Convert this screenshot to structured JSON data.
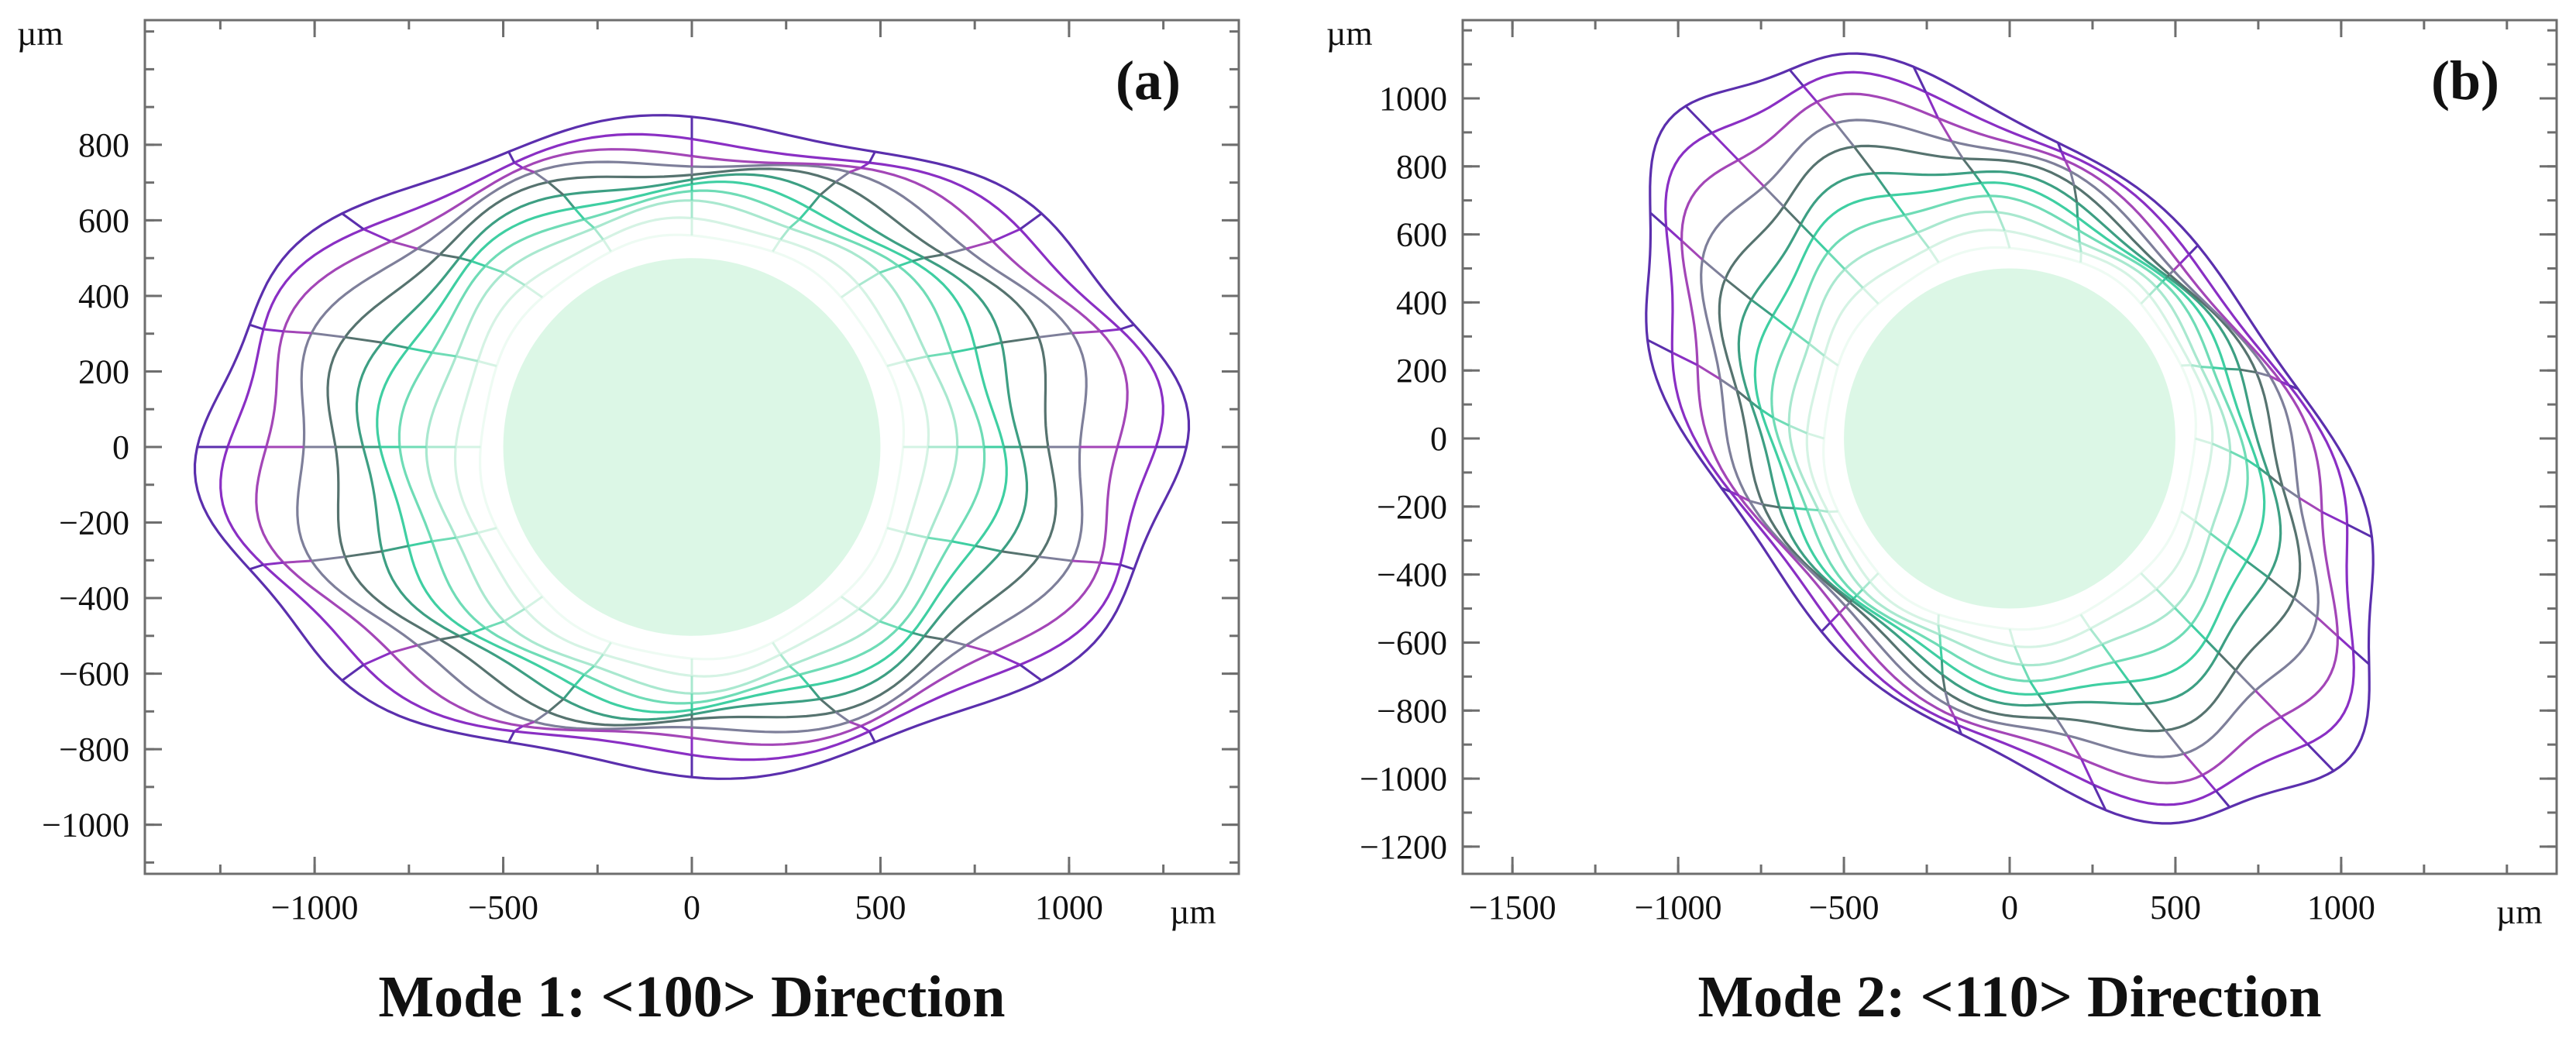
{
  "chart_data": [
    {
      "type": "contour",
      "panel_label": "(a)",
      "caption": "Mode 1: <100> Direction",
      "x_unit": "µm",
      "y_unit": "µm",
      "xlim": [
        -1450,
        1450
      ],
      "ylim": [
        -1130,
        1130
      ],
      "xticks": [
        -1000,
        -500,
        0,
        500,
        1000
      ],
      "xtick_labels": [
        "−1000",
        "−500",
        "0",
        "500",
        "1000"
      ],
      "yticks": [
        -1000,
        -800,
        -600,
        -400,
        -200,
        0,
        200,
        400,
        600,
        800
      ],
      "ytick_labels": [
        "−1000",
        "−800",
        "−600",
        "−400",
        "−200",
        "0",
        "200",
        "400",
        "600",
        "800"
      ],
      "seed_radius": 500,
      "seed_color": "#dcf7e6",
      "growth_fronts": [
        {
          "rx": 560,
          "ry": 560,
          "wave_amp": 0.01,
          "wave_k": 8,
          "color": "#eefbf3"
        },
        {
          "rx": 620,
          "ry": 600,
          "wave_amp": 0.015,
          "wave_k": 8,
          "color": "#d5f3e4"
        },
        {
          "rx": 690,
          "ry": 640,
          "wave_amp": 0.02,
          "wave_k": 8,
          "color": "#a9e8cf"
        },
        {
          "rx": 760,
          "ry": 665,
          "wave_amp": 0.022,
          "wave_k": 8,
          "color": "#6fdcb6"
        },
        {
          "rx": 820,
          "ry": 690,
          "wave_amp": 0.025,
          "wave_k": 8,
          "color": "#3fcfa2"
        },
        {
          "rx": 880,
          "ry": 715,
          "wave_amp": 0.028,
          "wave_k": 8,
          "color": "#3d9f83"
        },
        {
          "rx": 970,
          "ry": 740,
          "wave_amp": 0.03,
          "wave_k": 8,
          "color": "#56736f"
        },
        {
          "rx": 1060,
          "ry": 765,
          "wave_amp": 0.03,
          "wave_k": 8,
          "color": "#7e7f9a"
        },
        {
          "rx": 1150,
          "ry": 785,
          "wave_amp": 0.03,
          "wave_k": 8,
          "color": "#a346b7"
        },
        {
          "rx": 1230,
          "ry": 815,
          "wave_amp": 0.028,
          "wave_k": 8,
          "color": "#8a2fc4"
        },
        {
          "rx": 1290,
          "ry": 860,
          "wave_amp": 0.025,
          "wave_k": 8,
          "color": "#5b2fad"
        }
      ],
      "rotation_deg": 0
    },
    {
      "type": "contour",
      "panel_label": "(b)",
      "caption": "Mode 2: <110> Direction",
      "x_unit": "µm",
      "y_unit": "µm",
      "xlim": [
        -1650,
        1650
      ],
      "ylim": [
        -1280,
        1230
      ],
      "xticks": [
        -1500,
        -1000,
        -500,
        0,
        500,
        1000
      ],
      "xtick_labels": [
        "−1500",
        "−1000",
        "−500",
        "0",
        "500",
        "1000"
      ],
      "yticks": [
        -1200,
        -1000,
        -800,
        -600,
        -400,
        -200,
        0,
        200,
        400,
        600,
        800,
        1000
      ],
      "ytick_labels": [
        "−1200",
        "−1000",
        "−800",
        "−600",
        "−400",
        "−200",
        "0",
        "200",
        "400",
        "600",
        "800",
        "1000"
      ],
      "seed_radius": 500,
      "seed_color": "#dcf7e6",
      "growth_fronts": [
        {
          "rx": 560,
          "ry": 560,
          "wave_amp": 0.01,
          "wave_k": 8,
          "color": "#eefbf3"
        },
        {
          "rx": 620,
          "ry": 590,
          "wave_amp": 0.015,
          "wave_k": 8,
          "color": "#d5f3e4"
        },
        {
          "rx": 690,
          "ry": 615,
          "wave_amp": 0.02,
          "wave_k": 8,
          "color": "#a9e8cf"
        },
        {
          "rx": 760,
          "ry": 640,
          "wave_amp": 0.022,
          "wave_k": 8,
          "color": "#6fdcb6"
        },
        {
          "rx": 830,
          "ry": 660,
          "wave_amp": 0.025,
          "wave_k": 8,
          "color": "#3fcfa2"
        },
        {
          "rx": 900,
          "ry": 680,
          "wave_amp": 0.028,
          "wave_k": 8,
          "color": "#3d9f83"
        },
        {
          "rx": 990,
          "ry": 700,
          "wave_amp": 0.03,
          "wave_k": 8,
          "color": "#56736f"
        },
        {
          "rx": 1080,
          "ry": 720,
          "wave_amp": 0.03,
          "wave_k": 8,
          "color": "#7e7f9a"
        },
        {
          "rx": 1180,
          "ry": 740,
          "wave_amp": 0.03,
          "wave_k": 8,
          "color": "#a346b7"
        },
        {
          "rx": 1270,
          "ry": 765,
          "wave_amp": 0.028,
          "wave_k": 8,
          "color": "#8a2fc4"
        },
        {
          "rx": 1360,
          "ry": 790,
          "wave_amp": 0.025,
          "wave_k": 8,
          "color": "#5b2fad"
        }
      ],
      "rotation_deg": -45
    }
  ]
}
